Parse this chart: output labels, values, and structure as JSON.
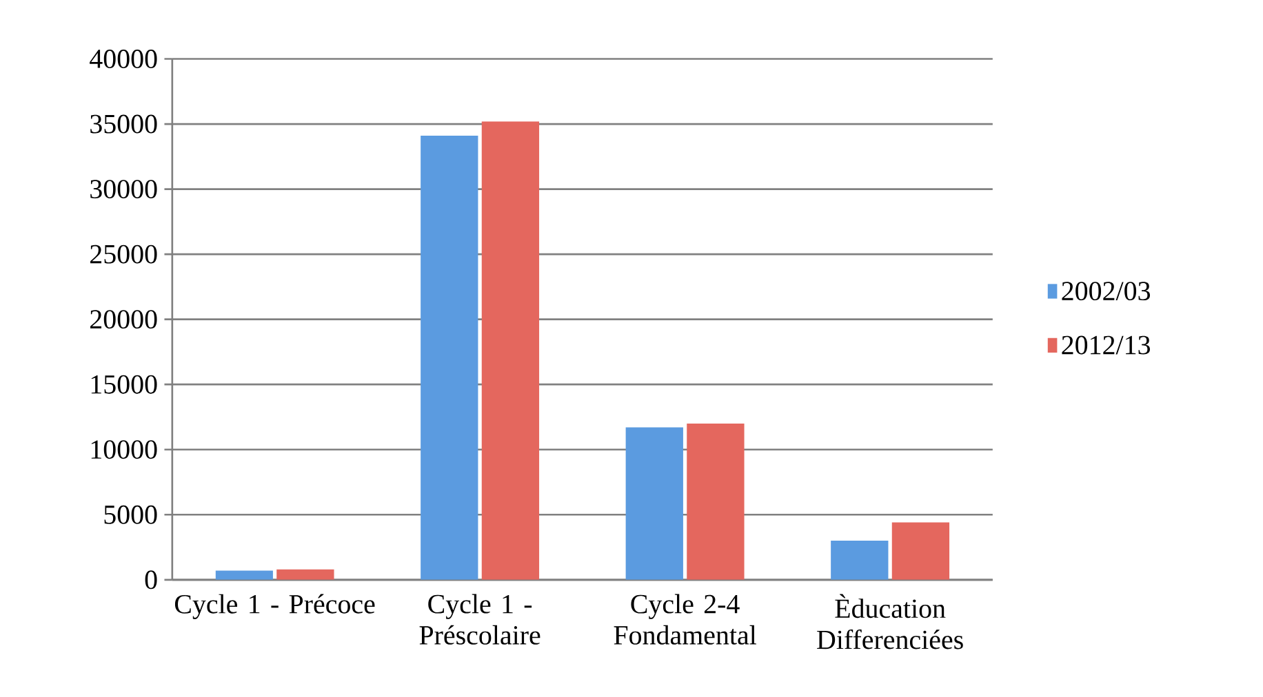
{
  "chart_data": {
    "type": "bar",
    "categories": [
      "Cycle 1 - Précoce",
      "Cycle 1 - Préscolaire",
      "Cycle 2-4 Fondamental",
      "Èducation Differenciées"
    ],
    "series": [
      {
        "name": "2002/03",
        "color": "#5b9be0",
        "values": [
          700,
          34100,
          11700,
          3000
        ]
      },
      {
        "name": "2012/13",
        "color": "#e4675e",
        "values": [
          800,
          35200,
          12000,
          4400
        ]
      }
    ],
    "ylim": [
      0,
      40000
    ],
    "yticks": [
      0,
      5000,
      10000,
      15000,
      20000,
      25000,
      30000,
      35000,
      40000
    ],
    "grid": "y",
    "legend": "right"
  }
}
